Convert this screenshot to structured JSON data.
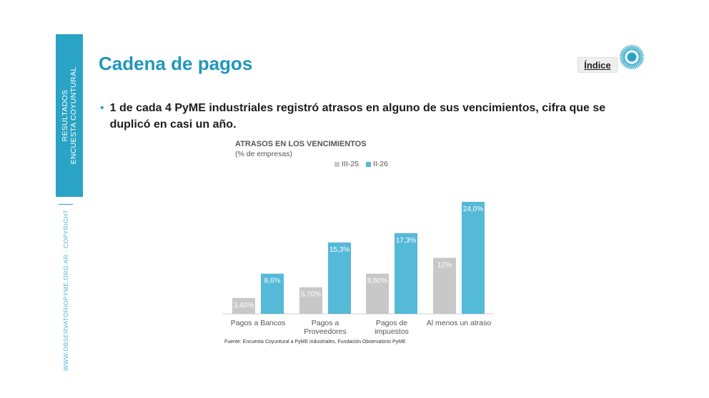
{
  "sidebar": {
    "band_line1": "RESULTADOS",
    "band_line2": "ENCUESTA COYUNTURAL",
    "vertical_text": "WWW.OBSERVATORIOPYME.ORG.AR -  COPYRIGHT"
  },
  "header": {
    "title": "Cadena de pagos",
    "index_label": "Índice"
  },
  "bullet": {
    "text": "1 de cada 4 PyME industriales registró atrasos en alguno de sus vencimientos, cifra que se duplicó en casi un año."
  },
  "colors": {
    "accent": "#1f97bd",
    "series_III25": "#c8c8c8",
    "series_II26": "#55b9d8"
  },
  "chart_data": {
    "type": "bar",
    "title": "ATRASOS EN LOS VENCIMIENTOS",
    "subtitle": "(% de empresas)",
    "categories": [
      [
        "Pagos a Bancos"
      ],
      [
        "Pagos a",
        "Proveedores"
      ],
      [
        "Pagos de",
        "impuestos"
      ],
      [
        "Al menos un atraso"
      ]
    ],
    "series": [
      {
        "name": "III-25",
        "values": [
          3.4,
          5.7,
          8.6,
          12
        ],
        "labels": [
          "3,40%",
          "5,70%",
          "8,60%",
          "12%"
        ],
        "color": "#c8c8c8"
      },
      {
        "name": "II-26",
        "values": [
          8.6,
          15.3,
          17.3,
          24.0
        ],
        "labels": [
          "8,6%",
          "15,3%",
          "17,3%",
          "24,0%"
        ],
        "color": "#55b9d8"
      }
    ],
    "ylim": [
      0,
      24
    ],
    "grid": false,
    "legend_position": "top-center"
  },
  "source": "Fuente: Encuesta Coyuntural a PyME industriales, Fundación Observatorio PyME"
}
